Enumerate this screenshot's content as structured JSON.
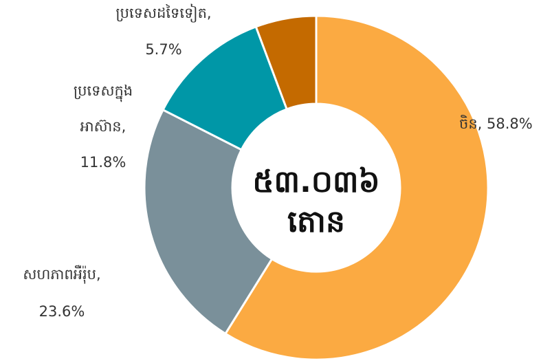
{
  "chart_data": {
    "type": "donut",
    "values": [
      58.8,
      23.6,
      11.8,
      5.7
    ],
    "value_labels": [
      [
        "ចិន, 58.8%"
      ],
      [
        "សហភាពអឺរ៉ុប,",
        "23.6%"
      ],
      [
        "ប្រទេសក្នុង",
        "អាស៊ាន,",
        "11.8%"
      ],
      [
        "ប្រទេសដទៃទៀត,",
        "5.7%"
      ]
    ],
    "colors": [
      "#fbaa42",
      "#7a909a",
      "#0097a7",
      "#c46a00"
    ],
    "center_text": [
      "៥៣.០៣៦",
      "តោន"
    ]
  }
}
